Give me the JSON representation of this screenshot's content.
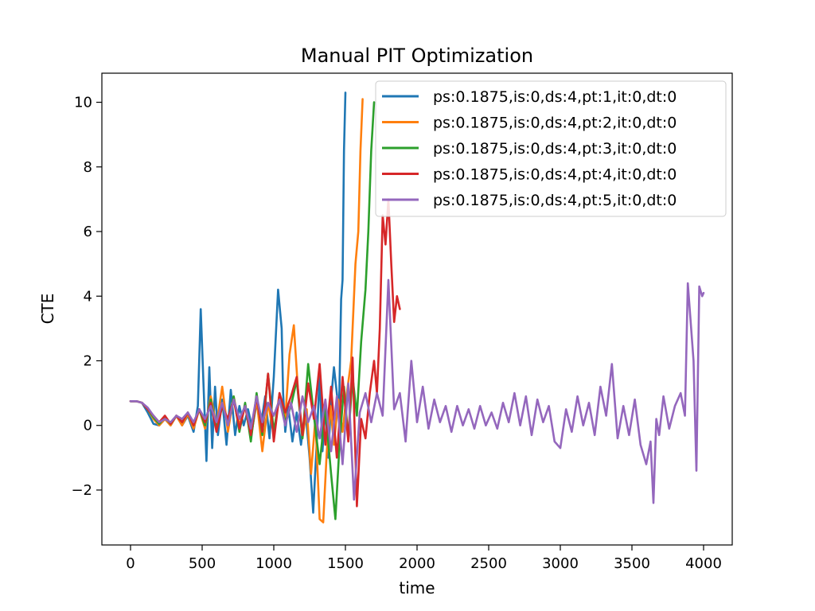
{
  "chart_data": {
    "type": "line",
    "title": "Manual PIT Optimization",
    "xlabel": "time",
    "ylabel": "CTE",
    "xlim": [
      -200,
      4200
    ],
    "ylim": [
      -3.7,
      10.9
    ],
    "xticks": [
      0,
      500,
      1000,
      1500,
      2000,
      2500,
      3000,
      3500,
      4000
    ],
    "xtick_labels": [
      "0",
      "500",
      "1000",
      "1500",
      "2000",
      "2500",
      "3000",
      "3500",
      "4000"
    ],
    "yticks": [
      -2,
      0,
      2,
      4,
      6,
      8,
      10
    ],
    "ytick_labels": [
      "−2",
      "0",
      "2",
      "4",
      "6",
      "8",
      "10"
    ],
    "legend_position": "top-right",
    "grid": false,
    "series": [
      {
        "name": "ps:0.1875,is:0,ds:4,pt:1,it:0,dt:0",
        "color": "#1f77b4",
        "x": [
          0,
          40,
          80,
          120,
          160,
          200,
          240,
          280,
          320,
          360,
          400,
          440,
          470,
          490,
          510,
          530,
          550,
          570,
          590,
          610,
          640,
          670,
          700,
          730,
          760,
          790,
          820,
          850,
          880,
          910,
          940,
          970,
          1000,
          1030,
          1055,
          1065,
          1080,
          1100,
          1130,
          1160,
          1190,
          1220,
          1250,
          1275,
          1300,
          1320,
          1340,
          1360,
          1380,
          1400,
          1420,
          1440,
          1455,
          1470,
          1480,
          1490,
          1500
        ],
        "y": [
          0.75,
          0.75,
          0.7,
          0.4,
          0.05,
          0.0,
          0.2,
          0.0,
          0.3,
          0.0,
          0.3,
          -0.2,
          0.6,
          3.6,
          1.2,
          -1.1,
          1.8,
          -0.7,
          1.2,
          -0.3,
          0.8,
          -0.6,
          1.1,
          -0.3,
          0.6,
          0.0,
          0.5,
          -0.1,
          0.7,
          0.0,
          0.9,
          -0.4,
          1.5,
          4.2,
          3.0,
          1.0,
          -0.2,
          0.6,
          -0.5,
          0.4,
          -0.6,
          0.5,
          -1.0,
          -2.7,
          -0.5,
          1.6,
          -0.8,
          0.6,
          -1.0,
          0.8,
          1.8,
          1.0,
          0.4,
          3.9,
          4.5,
          8.5,
          10.3
        ]
      },
      {
        "name": "ps:0.1875,is:0,ds:4,pt:2,it:0,dt:0",
        "color": "#ff7f0e",
        "x": [
          0,
          40,
          80,
          120,
          160,
          200,
          240,
          280,
          320,
          360,
          400,
          440,
          480,
          520,
          560,
          600,
          640,
          680,
          720,
          760,
          800,
          840,
          880,
          920,
          960,
          1000,
          1040,
          1080,
          1110,
          1140,
          1170,
          1200,
          1230,
          1260,
          1290,
          1320,
          1345,
          1370,
          1395,
          1420,
          1450,
          1480,
          1510,
          1540,
          1570,
          1590,
          1605,
          1620
        ],
        "y": [
          0.75,
          0.75,
          0.7,
          0.5,
          0.2,
          0.0,
          0.2,
          0.0,
          0.3,
          0.0,
          0.35,
          -0.1,
          0.5,
          -0.1,
          0.9,
          0.0,
          1.2,
          -0.2,
          0.9,
          0.0,
          0.6,
          -0.4,
          0.8,
          -0.8,
          0.7,
          -0.3,
          1.0,
          0.2,
          2.2,
          3.1,
          1.0,
          -0.4,
          0.5,
          -1.5,
          0.2,
          -2.9,
          -3.0,
          -0.8,
          0.6,
          -0.6,
          0.8,
          -0.2,
          1.0,
          2.0,
          5.0,
          6.0,
          8.5,
          10.1
        ]
      },
      {
        "name": "ps:0.1875,is:0,ds:4,pt:3,it:0,dt:0",
        "color": "#2ca02c",
        "x": [
          0,
          40,
          80,
          120,
          160,
          200,
          240,
          280,
          320,
          360,
          400,
          440,
          480,
          520,
          560,
          600,
          640,
          680,
          720,
          760,
          800,
          840,
          880,
          920,
          960,
          1000,
          1040,
          1080,
          1120,
          1160,
          1200,
          1240,
          1280,
          1320,
          1360,
          1400,
          1430,
          1460,
          1490,
          1520,
          1550,
          1580,
          1610,
          1640,
          1660,
          1680,
          1700
        ],
        "y": [
          0.75,
          0.75,
          0.7,
          0.5,
          0.25,
          0.05,
          0.25,
          0.05,
          0.3,
          0.1,
          0.4,
          0.0,
          0.5,
          0.0,
          0.8,
          -0.1,
          0.6,
          0.1,
          0.9,
          -0.2,
          0.7,
          -0.5,
          1.0,
          -0.3,
          1.6,
          -0.2,
          0.9,
          0.1,
          0.6,
          1.4,
          -0.4,
          1.9,
          0.3,
          -1.2,
          0.5,
          -1.5,
          -2.9,
          -0.5,
          1.2,
          -0.4,
          1.5,
          0.3,
          2.6,
          4.2,
          6.0,
          8.5,
          10.0
        ]
      },
      {
        "name": "ps:0.1875,is:0,ds:4,pt:4,it:0,dt:0",
        "color": "#d62728",
        "x": [
          0,
          40,
          80,
          120,
          160,
          200,
          240,
          280,
          320,
          360,
          400,
          440,
          480,
          520,
          560,
          600,
          640,
          680,
          720,
          760,
          800,
          840,
          880,
          920,
          960,
          1000,
          1040,
          1080,
          1120,
          1160,
          1200,
          1240,
          1280,
          1320,
          1360,
          1400,
          1440,
          1480,
          1520,
          1550,
          1580,
          1610,
          1640,
          1670,
          1700,
          1720,
          1740,
          1760,
          1780,
          1800,
          1820,
          1840,
          1860,
          1880
        ],
        "y": [
          0.75,
          0.75,
          0.7,
          0.5,
          0.3,
          0.1,
          0.3,
          0.05,
          0.3,
          0.1,
          0.4,
          0.0,
          0.5,
          0.1,
          0.7,
          -0.2,
          0.6,
          0.2,
          0.8,
          -0.1,
          0.6,
          -0.3,
          0.9,
          -0.2,
          1.6,
          -0.5,
          1.0,
          0.4,
          0.9,
          1.5,
          -0.3,
          1.3,
          0.2,
          1.9,
          -0.6,
          1.2,
          -1.0,
          1.5,
          -0.5,
          2.1,
          -2.5,
          0.2,
          -0.4,
          1.0,
          2.0,
          1.0,
          3.0,
          6.5,
          5.6,
          7.0,
          5.0,
          3.2,
          4.0,
          3.6
        ]
      },
      {
        "name": "ps:0.1875,is:0,ds:4,pt:5,it:0,dt:0",
        "color": "#9467bd",
        "x": [
          0,
          40,
          80,
          120,
          160,
          200,
          240,
          280,
          320,
          360,
          400,
          440,
          480,
          520,
          560,
          600,
          640,
          680,
          720,
          760,
          800,
          840,
          880,
          920,
          960,
          1000,
          1040,
          1080,
          1120,
          1160,
          1200,
          1240,
          1280,
          1320,
          1360,
          1400,
          1440,
          1480,
          1520,
          1560,
          1600,
          1640,
          1680,
          1720,
          1760,
          1800,
          1840,
          1880,
          1920,
          1960,
          2000,
          2040,
          2080,
          2120,
          2160,
          2200,
          2240,
          2280,
          2320,
          2360,
          2400,
          2440,
          2480,
          2520,
          2560,
          2600,
          2640,
          2680,
          2720,
          2760,
          2800,
          2840,
          2880,
          2920,
          2960,
          3000,
          3040,
          3080,
          3120,
          3160,
          3200,
          3240,
          3280,
          3320,
          3360,
          3400,
          3440,
          3480,
          3520,
          3560,
          3600,
          3630,
          3650,
          3670,
          3690,
          3720,
          3760,
          3800,
          3840,
          3870,
          3890,
          3910,
          3930,
          3950,
          3970,
          3990,
          4000
        ],
        "y": [
          0.75,
          0.75,
          0.7,
          0.55,
          0.3,
          0.1,
          0.2,
          0.1,
          0.3,
          0.2,
          0.4,
          0.1,
          0.5,
          0.2,
          0.6,
          0.1,
          0.7,
          0.0,
          0.8,
          0.2,
          0.6,
          -0.1,
          0.9,
          0.1,
          0.7,
          0.3,
          0.8,
          0.0,
          0.7,
          -0.2,
          0.9,
          0.1,
          0.6,
          -0.4,
          0.8,
          -0.8,
          0.9,
          -1.2,
          1.3,
          -2.3,
          0.4,
          1.0,
          0.1,
          1.0,
          0.3,
          4.5,
          0.5,
          1.0,
          -0.5,
          2.0,
          0.1,
          1.2,
          -0.1,
          0.8,
          0.1,
          0.6,
          -0.2,
          0.6,
          0.0,
          0.5,
          -0.1,
          0.6,
          0.0,
          0.4,
          -0.1,
          0.7,
          0.1,
          1.0,
          0.0,
          0.9,
          -0.3,
          0.8,
          0.1,
          0.6,
          -0.5,
          -0.7,
          0.5,
          -0.2,
          0.9,
          0.0,
          0.7,
          -0.3,
          1.2,
          0.3,
          1.9,
          -0.4,
          0.6,
          -0.3,
          0.8,
          -0.6,
          -1.2,
          -0.5,
          -2.4,
          0.2,
          -0.3,
          0.9,
          -0.1,
          0.6,
          1.0,
          0.3,
          4.4,
          3.2,
          2.0,
          -1.4,
          4.3,
          4.0,
          4.1
        ]
      }
    ]
  }
}
